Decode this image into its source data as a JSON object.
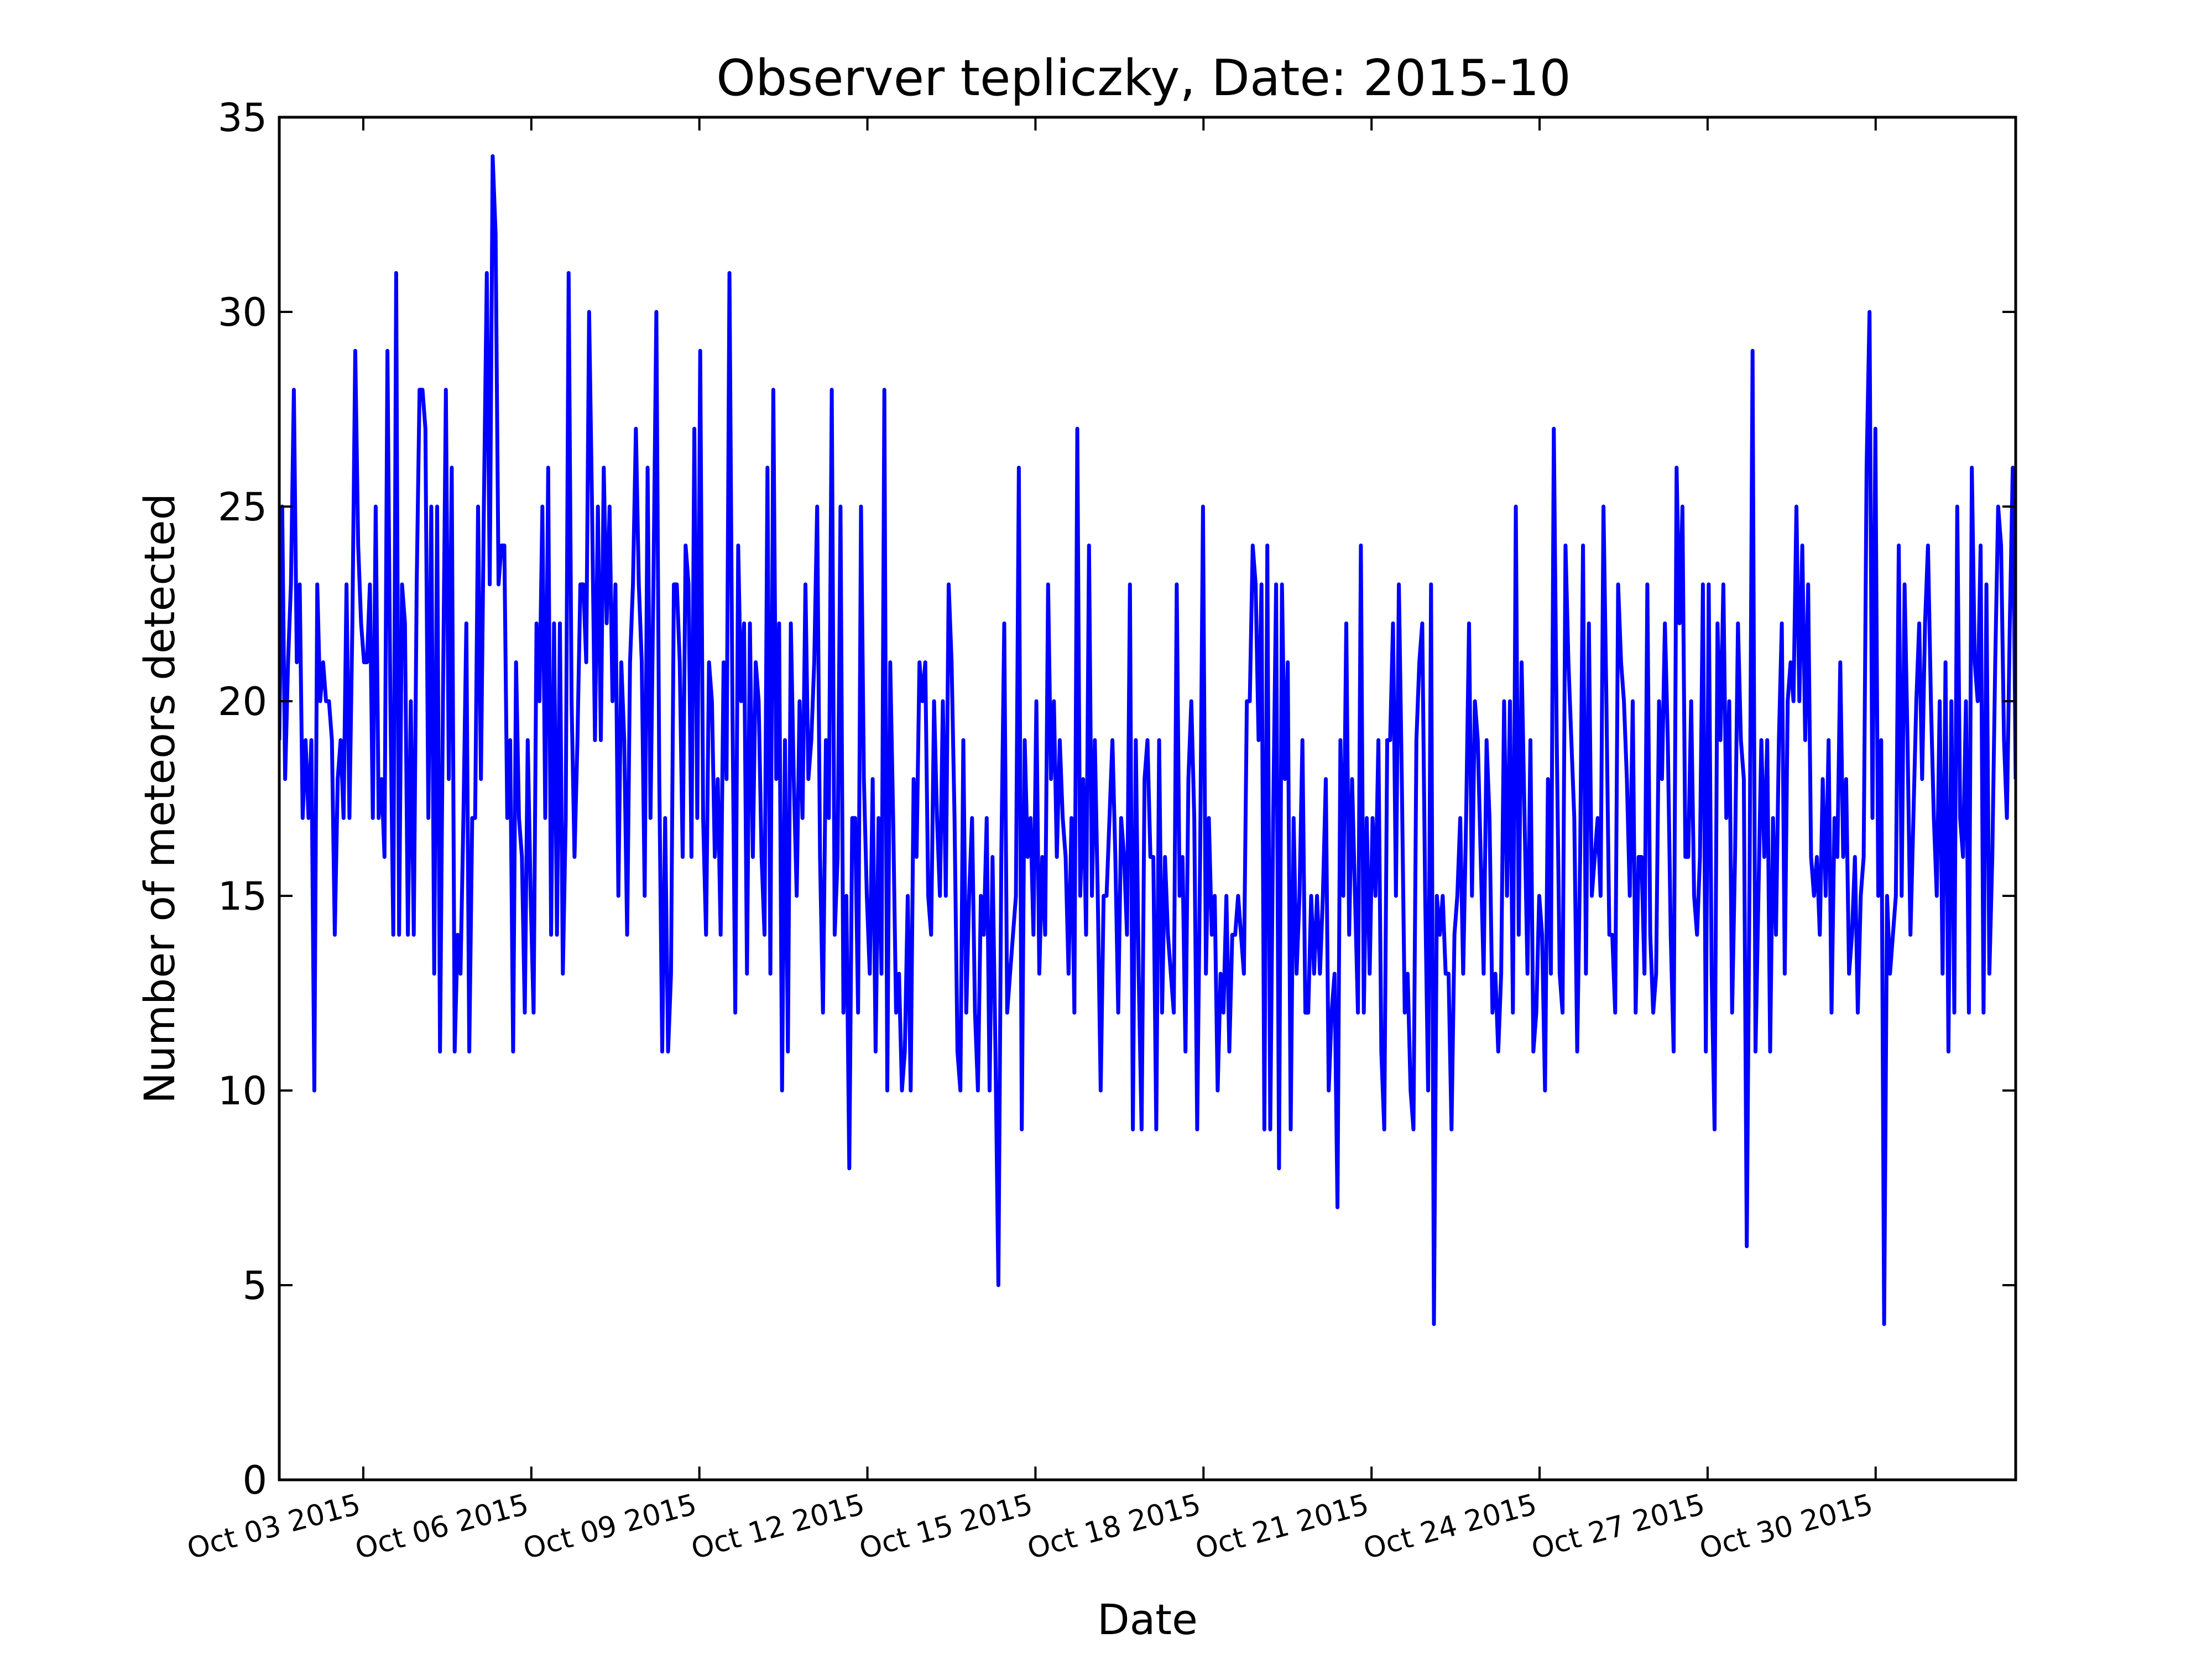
{
  "chart_data": {
    "type": "line",
    "title": "Observer tepliczky, Date: 2015-10",
    "xlabel": "Date",
    "ylabel": "Number of meteors detected",
    "ylim": [
      0,
      35
    ],
    "yticks": [
      "0",
      "5",
      "10",
      "15",
      "20",
      "25",
      "30",
      "35"
    ],
    "xlim": [
      "2015-10-01 12:00",
      "2015-11-01 12:00"
    ],
    "xticks": [
      {
        "date": "2015-10-03",
        "label": "Oct 03 2015"
      },
      {
        "date": "2015-10-06",
        "label": "Oct 06 2015"
      },
      {
        "date": "2015-10-09",
        "label": "Oct 09 2015"
      },
      {
        "date": "2015-10-12",
        "label": "Oct 12 2015"
      },
      {
        "date": "2015-10-15",
        "label": "Oct 15 2015"
      },
      {
        "date": "2015-10-18",
        "label": "Oct 18 2015"
      },
      {
        "date": "2015-10-21",
        "label": "Oct 21 2015"
      },
      {
        "date": "2015-10-24",
        "label": "Oct 24 2015"
      },
      {
        "date": "2015-10-27",
        "label": "Oct 27 2015"
      },
      {
        "date": "2015-10-30",
        "label": "Oct 30 2015"
      }
    ],
    "grid": false,
    "line_color": "#0000ff",
    "series": [
      {
        "x_start": "2015-10-01 12:00",
        "x_end": "2015-11-01 12:00",
        "values": [
          19,
          25,
          18,
          21,
          23,
          28,
          21,
          23,
          17,
          19,
          17,
          19,
          10,
          23,
          20,
          21,
          20,
          20,
          19,
          14,
          18,
          19,
          17,
          23,
          17,
          22,
          29,
          24,
          22,
          21,
          21,
          23,
          17,
          25,
          17,
          18,
          16,
          29,
          20,
          14,
          31,
          14,
          23,
          22,
          14,
          20,
          14,
          23,
          28,
          28,
          27,
          17,
          25,
          13,
          25,
          11,
          20,
          28,
          18,
          26,
          11,
          14,
          13,
          17,
          22,
          11,
          17,
          17,
          25,
          18,
          25,
          31,
          23,
          34,
          32,
          23,
          24,
          24,
          17,
          19,
          11,
          21,
          17,
          16,
          12,
          19,
          15,
          12,
          22,
          20,
          25,
          17,
          26,
          14,
          22,
          14,
          22,
          13,
          17,
          31,
          20,
          16,
          19,
          23,
          23,
          21,
          30,
          25,
          19,
          25,
          19,
          26,
          22,
          25,
          20,
          23,
          15,
          21,
          19,
          14,
          21,
          23,
          27,
          23,
          21,
          15,
          26,
          17,
          23,
          30,
          18,
          11,
          17,
          11,
          13,
          23,
          23,
          21,
          16,
          24,
          23,
          16,
          27,
          17,
          29,
          17,
          14,
          21,
          20,
          16,
          18,
          14,
          21,
          18,
          31,
          20,
          12,
          24,
          20,
          22,
          13,
          22,
          16,
          21,
          20,
          16,
          14,
          26,
          13,
          28,
          18,
          22,
          10,
          19,
          11,
          22,
          18,
          15,
          20,
          17,
          23,
          18,
          19,
          21,
          25,
          16,
          12,
          19,
          17,
          28,
          14,
          16,
          25,
          12,
          15,
          8,
          17,
          17,
          12,
          25,
          18,
          15,
          13,
          18,
          11,
          17,
          13,
          28,
          10,
          21,
          17,
          12,
          13,
          10,
          11,
          15,
          10,
          18,
          16,
          21,
          20,
          21,
          15,
          14,
          20,
          17,
          15,
          20,
          15,
          23,
          21,
          17,
          11,
          10,
          19,
          12,
          15,
          17,
          12,
          10,
          15,
          14,
          17,
          10,
          16,
          11,
          5,
          16,
          22,
          12,
          13,
          14,
          15,
          26,
          9,
          19,
          16,
          17,
          14,
          20,
          13,
          16,
          14,
          23,
          18,
          20,
          16,
          19,
          17,
          16,
          13,
          17,
          12,
          27,
          15,
          18,
          14,
          24,
          15,
          19,
          15,
          10,
          15,
          15,
          17,
          19,
          16,
          12,
          17,
          16,
          14,
          23,
          9,
          19,
          13,
          9,
          18,
          19,
          16,
          16,
          9,
          19,
          12,
          16,
          14,
          13,
          12,
          23,
          15,
          16,
          11,
          18,
          20,
          17,
          9,
          16,
          25,
          13,
          17,
          14,
          15,
          10,
          13,
          12,
          15,
          11,
          14,
          14,
          15,
          14,
          13,
          20,
          20,
          24,
          23,
          19,
          23,
          9,
          24,
          9,
          17,
          23,
          8,
          23,
          18,
          21,
          9,
          17,
          13,
          15,
          19,
          12,
          12,
          15,
          13,
          15,
          13,
          15,
          18,
          10,
          12,
          13,
          7,
          19,
          15,
          22,
          14,
          18,
          15,
          12,
          24,
          12,
          17,
          13,
          17,
          15,
          19,
          11,
          9,
          19,
          19,
          22,
          15,
          23,
          18,
          12,
          13,
          10,
          9,
          19,
          21,
          22,
          15,
          10,
          23,
          4,
          15,
          14,
          15,
          13,
          13,
          9,
          14,
          15,
          17,
          13,
          17,
          22,
          15,
          20,
          19,
          16,
          13,
          19,
          17,
          12,
          13,
          11,
          13,
          20,
          15,
          20,
          12,
          25,
          14,
          21,
          17,
          13,
          19,
          11,
          12,
          15,
          14,
          10,
          18,
          13,
          27,
          19,
          13,
          12,
          24,
          21,
          19,
          17,
          11,
          16,
          24,
          13,
          22,
          15,
          16,
          17,
          15,
          25,
          20,
          14,
          14,
          12,
          23,
          21,
          20,
          18,
          15,
          20,
          12,
          16,
          16,
          13,
          23,
          14,
          12,
          13,
          20,
          18,
          22,
          19,
          14,
          11,
          26,
          22,
          25,
          16,
          16,
          20,
          15,
          14,
          16,
          23,
          11,
          23,
          13,
          9,
          22,
          19,
          23,
          17,
          20,
          12,
          16,
          22,
          19,
          18,
          6,
          16,
          29,
          11,
          15,
          19,
          16,
          19,
          11,
          17,
          14,
          19,
          22,
          13,
          20,
          21,
          20,
          25,
          20,
          24,
          19,
          23,
          16,
          15,
          16,
          14,
          18,
          15,
          19,
          12,
          17,
          16,
          21,
          16,
          18,
          13,
          14,
          16,
          12,
          15,
          16,
          26,
          30,
          17,
          27,
          15,
          19,
          4,
          15,
          13,
          14,
          15,
          24,
          15,
          23,
          19,
          14,
          17,
          20,
          22,
          18,
          22,
          24,
          20,
          17,
          15,
          20,
          13,
          21,
          11,
          20,
          12,
          25,
          17,
          16,
          20,
          12,
          26,
          21,
          20,
          24,
          12,
          23,
          13,
          16,
          21,
          25,
          24,
          19,
          17,
          22,
          26,
          18
        ]
      }
    ]
  }
}
